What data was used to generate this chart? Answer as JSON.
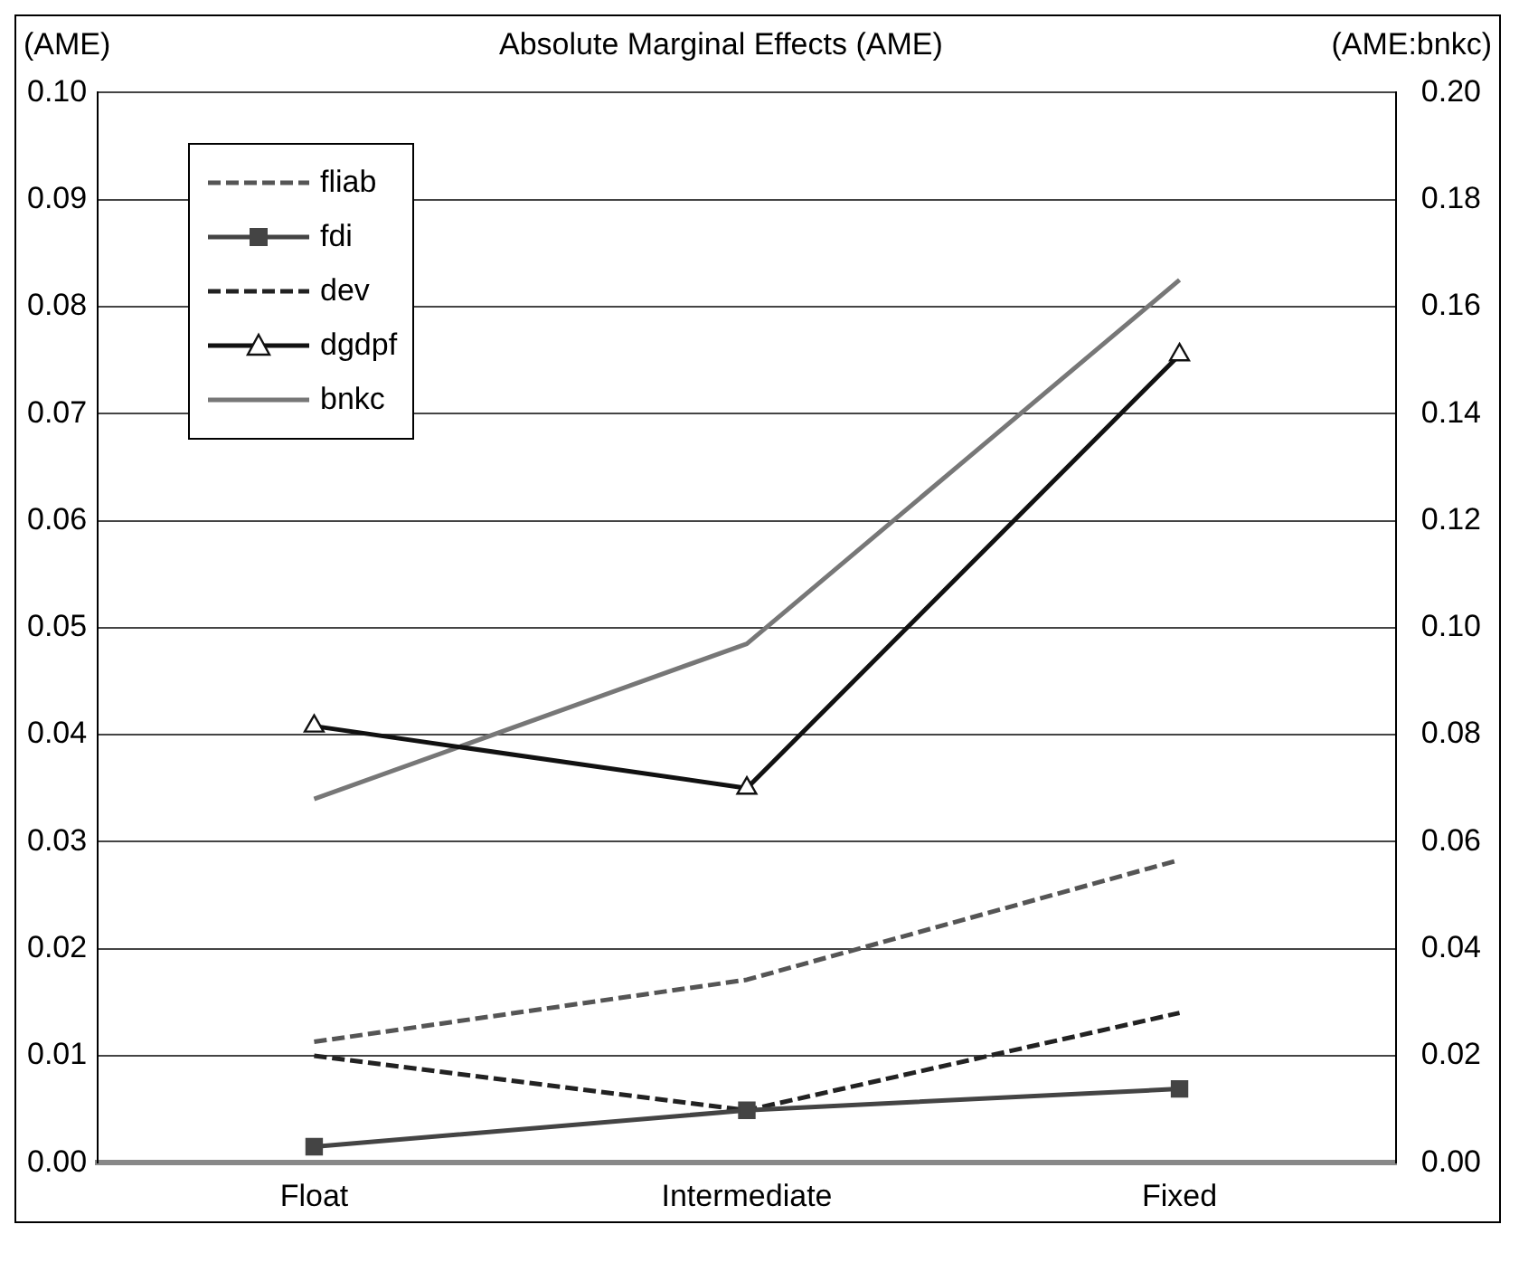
{
  "chart_data": {
    "type": "line",
    "title": "Absolute Marginal Effects (AME)",
    "ylabel": "(AME)",
    "y2label": "(AME:bnkc)",
    "categories": [
      "Float",
      "Intermediate",
      "Fixed"
    ],
    "series": [
      {
        "name": "fliab",
        "color": "#555555",
        "values": [
          0.0113,
          0.0171,
          0.0283
        ],
        "line_style": "dashed",
        "marker": "none"
      },
      {
        "name": "fdi",
        "color": "#444444",
        "values": [
          0.0015,
          0.0049,
          0.0069
        ],
        "line_style": "solid",
        "marker": "square"
      },
      {
        "name": "dev",
        "color": "#222222",
        "values": [
          0.01,
          0.0049,
          0.014
        ],
        "line_style": "dashed",
        "marker": "none"
      },
      {
        "name": "dgdpf",
        "color": "#111111",
        "values": [
          0.0408,
          0.035,
          0.0755
        ],
        "line_style": "solid",
        "marker": "triangle"
      },
      {
        "name": "bnkc",
        "color": "#777777",
        "values": [
          0.068,
          0.097,
          0.165
        ],
        "line_style": "solid",
        "marker": "none",
        "axis": "y2"
      }
    ],
    "ylim": [
      0,
      0.1
    ],
    "yticks": [
      {
        "value": 0,
        "label": "0.00"
      },
      {
        "value": 0.01,
        "label": "0.01"
      },
      {
        "value": 0.02,
        "label": "0.02"
      },
      {
        "value": 0.03,
        "label": "0.03"
      },
      {
        "value": 0.04,
        "label": "0.04"
      },
      {
        "value": 0.05,
        "label": "0.05"
      },
      {
        "value": 0.06,
        "label": "0.06"
      },
      {
        "value": 0.07,
        "label": "0.07"
      },
      {
        "value": 0.08,
        "label": "0.08"
      },
      {
        "value": 0.09,
        "label": "0.09"
      },
      {
        "value": 0.1,
        "label": "0.10"
      }
    ],
    "y2lim": [
      0,
      0.2
    ],
    "y2ticks": [
      {
        "value": 0,
        "label": "0.00"
      },
      {
        "value": 0.02,
        "label": "0.02"
      },
      {
        "value": 0.04,
        "label": "0.04"
      },
      {
        "value": 0.06,
        "label": "0.06"
      },
      {
        "value": 0.08,
        "label": "0.08"
      },
      {
        "value": 0.1,
        "label": "0.10"
      },
      {
        "value": 0.12,
        "label": "0.12"
      },
      {
        "value": 0.14,
        "label": "0.14"
      },
      {
        "value": 0.16,
        "label": "0.16"
      },
      {
        "value": 0.18,
        "label": "0.18"
      },
      {
        "value": 0.2,
        "label": "0.20"
      }
    ],
    "grid": "y",
    "legend": "top left"
  }
}
